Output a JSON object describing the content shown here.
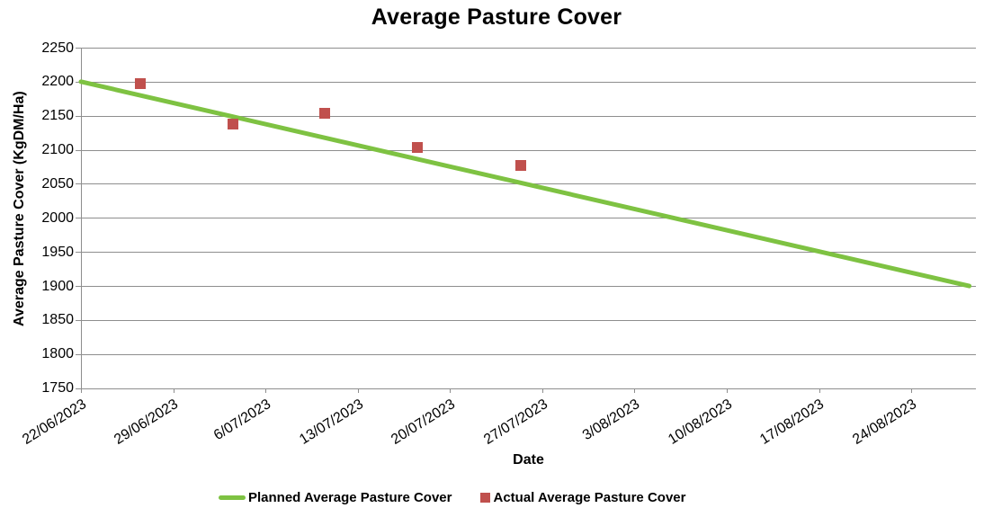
{
  "legend": {
    "planned_label": "Planned Average Pasture Cover",
    "actual_label": "Actual Average Pasture Cover"
  },
  "chart_data": {
    "type": "line",
    "title": "Average Pasture Cover",
    "xlabel": "Date",
    "ylabel": "Average Pasture Cover (KgDM/Ha)",
    "ylim": [
      1750,
      2250
    ],
    "yticks": [
      1750,
      1800,
      1850,
      1900,
      1950,
      2000,
      2050,
      2100,
      2150,
      2200,
      2250
    ],
    "x_tick_labels": [
      "22/06/2023",
      "29/06/2023",
      "6/07/2023",
      "13/07/2023",
      "20/07/2023",
      "27/07/2023",
      "3/08/2023",
      "10/08/2023",
      "17/08/2023",
      "24/08/2023"
    ],
    "x_tick_interval_days": 7,
    "x_axis_span_days": 67.9,
    "grid": "horizontal-only",
    "legend_position": "bottom-center",
    "colors": {
      "planned": "#7ec242",
      "actual": "#c0504d",
      "gridline": "#8e8e8e",
      "axis": "#8e8e8e",
      "text": "#000000"
    },
    "series": [
      {
        "name": "Planned Average Pasture Cover",
        "type": "line",
        "color": "#7ec242",
        "points": [
          {
            "day_offset": 0,
            "date": "22/06/2023",
            "value": 2200
          },
          {
            "day_offset": 67.4,
            "date": "29/08/2023",
            "value": 1900
          }
        ]
      },
      {
        "name": "Actual Average Pasture Cover",
        "type": "scatter",
        "marker": "square",
        "color": "#c0504d",
        "points": [
          {
            "day_offset": 4.5,
            "date": "27/06/2023",
            "value": 2197
          },
          {
            "day_offset": 11.5,
            "date": "4/07/2023",
            "value": 2138
          },
          {
            "day_offset": 18.5,
            "date": "11/07/2023",
            "value": 2154
          },
          {
            "day_offset": 25.5,
            "date": "18/07/2023",
            "value": 2104
          },
          {
            "day_offset": 33.4,
            "date": "25/07/2023",
            "value": 2077
          }
        ]
      }
    ]
  }
}
